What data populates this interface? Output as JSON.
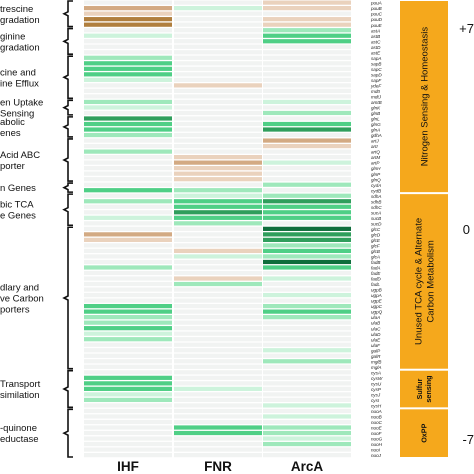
{
  "colors": {
    "dark_green": "#0f6e3c",
    "green": "#2f9e5c",
    "mid_green": "#4fcf86",
    "light_green": "#9ee8bb",
    "pale_green": "#cdf3dc",
    "empty": "#f1f3f2",
    "light_tan": "#ead2bd",
    "tan": "#d3aa83",
    "brown": "#b07f3e",
    "category_fill": "#f5a81c"
  },
  "scale_labels": [
    "+7",
    "0",
    "-7"
  ],
  "chart_data": {
    "type": "heatmap",
    "columns": [
      "IHF",
      "FNR",
      "ArcA"
    ],
    "groups": [
      {
        "label": [
          "trescine",
          "gradation"
        ],
        "rows": [
          0,
          4
        ]
      },
      {
        "label": [
          "ginine",
          "gradation"
        ],
        "rows": [
          5,
          9
        ]
      },
      {
        "label": [
          "cine and",
          "ine Efflux"
        ],
        "rows": [
          10,
          17
        ]
      },
      {
        "label": [
          "en Uptake",
          "Sensing"
        ],
        "rows": [
          18,
          20
        ]
      },
      {
        "label": [
          "abolic",
          "enes"
        ],
        "rows": [
          21,
          24
        ]
      },
      {
        "label": [
          "Acid ABC",
          "porter"
        ],
        "rows": [
          25,
          32
        ]
      },
      {
        "label": [
          "n Genes"
        ],
        "rows": [
          33,
          34
        ]
      },
      {
        "label": [
          "bic TCA",
          "e Genes"
        ],
        "rows": [
          35,
          40
        ]
      },
      {
        "label": [
          "dlary and",
          "ve Carbon",
          "porters"
        ],
        "rows": [
          41,
          66
        ]
      },
      {
        "label": [
          "Transport",
          "similation"
        ],
        "rows": [
          67,
          73
        ]
      },
      {
        "label": [
          "-quinone",
          "eductase"
        ],
        "rows": [
          74,
          82
        ]
      }
    ],
    "categories": [
      {
        "label": [
          "Nitrogen Sensing & Homeostasis"
        ],
        "rows": [
          0,
          34
        ]
      },
      {
        "label": [
          "Unused TCA cycle & Alternate",
          "Carbon Metabolism"
        ],
        "rows": [
          35,
          66
        ]
      },
      {
        "label": [
          "Sulfur",
          "sensing"
        ],
        "rows": [
          67,
          73
        ]
      },
      {
        "label": [
          "OxPP"
        ],
        "rows": [
          74,
          82
        ]
      }
    ],
    "genes": [
      "puuA",
      "puuB",
      "puuC",
      "puuD",
      "puuE",
      "astA",
      "astB",
      "astC",
      "astD",
      "astE",
      "sapA",
      "sapB",
      "sapC",
      "sapD",
      "sapF",
      "ydeF",
      "mdtI",
      "mdtJ",
      "amtB",
      "glnK",
      "glnB",
      "glnL",
      "glnG",
      "glnA",
      "gdhA",
      "artJ",
      "artI",
      "artQ",
      "artM",
      "artP",
      "glnH",
      "glnP",
      "glnQ",
      "cydA",
      "cydB",
      "sdhA",
      "sdhB",
      "sdhC",
      "sucA",
      "sucB",
      "sucD",
      "glcC",
      "glcD",
      "glcE",
      "glcF",
      "glcB",
      "glcA",
      "fadB",
      "fadA",
      "fadE",
      "fadD",
      "fadL",
      "ugpB",
      "ugpA",
      "ugpE",
      "ugpC",
      "ugpQ",
      "ulaA",
      "ulaB",
      "ulaC",
      "ulaD",
      "ulaE",
      "ulaF",
      "galP",
      "galR",
      "mglB",
      "mglA",
      "cysA",
      "cysW",
      "cysU",
      "cysP",
      "cysJ",
      "cysI",
      "cysH",
      "nuoA",
      "nuoB",
      "nuoC",
      "nuoE",
      "nuoF",
      "nuoG",
      "nuoH",
      "nuoI",
      "nuoJ"
    ],
    "values": [
      [
        0,
        0,
        -2
      ],
      [
        -3,
        1,
        -1
      ],
      [
        -2,
        0,
        0
      ],
      [
        -6,
        0,
        -1
      ],
      [
        -7,
        0,
        -1
      ],
      [
        0,
        0,
        2
      ],
      [
        1,
        0,
        4
      ],
      [
        0,
        0,
        3
      ],
      [
        0,
        0,
        0
      ],
      [
        0,
        0,
        0
      ],
      [
        2,
        0,
        0
      ],
      [
        3,
        0,
        0
      ],
      [
        4,
        0,
        0
      ],
      [
        3,
        0,
        0
      ],
      [
        1,
        0,
        0
      ],
      [
        0,
        -2,
        0
      ],
      [
        0,
        0,
        0
      ],
      [
        0,
        0,
        0
      ],
      [
        2,
        0,
        1
      ],
      [
        1,
        0,
        0
      ],
      [
        0,
        0,
        2
      ],
      [
        5,
        0,
        0
      ],
      [
        3,
        0,
        4
      ],
      [
        3,
        0,
        5
      ],
      [
        2,
        0,
        0
      ],
      [
        0,
        0,
        -3
      ],
      [
        0,
        0,
        -2
      ],
      [
        2,
        0,
        0
      ],
      [
        0,
        -2,
        0
      ],
      [
        0,
        -3,
        1
      ],
      [
        0,
        -2,
        0
      ],
      [
        0,
        -2,
        0
      ],
      [
        0,
        -1,
        0
      ],
      [
        0,
        0,
        2
      ],
      [
        3,
        2,
        0
      ],
      [
        0,
        1,
        2
      ],
      [
        2,
        4,
        6
      ],
      [
        0,
        3,
        4
      ],
      [
        0,
        5,
        3
      ],
      [
        1,
        3,
        4
      ],
      [
        0,
        2,
        0
      ],
      [
        0,
        0,
        7
      ],
      [
        -3,
        0,
        6
      ],
      [
        -2,
        0,
        5
      ],
      [
        0,
        0,
        2
      ],
      [
        0,
        -1,
        3
      ],
      [
        0,
        1,
        2
      ],
      [
        0,
        0,
        7
      ],
      [
        2,
        0,
        4
      ],
      [
        0,
        0,
        0
      ],
      [
        0,
        -2,
        1
      ],
      [
        0,
        2,
        0
      ],
      [
        0,
        0,
        0
      ],
      [
        0,
        0,
        1
      ],
      [
        0,
        0,
        0
      ],
      [
        4,
        0,
        2
      ],
      [
        4,
        0,
        3
      ],
      [
        2,
        0,
        2
      ],
      [
        2,
        0,
        0
      ],
      [
        3,
        0,
        0
      ],
      [
        1,
        0,
        0
      ],
      [
        2,
        0,
        0
      ],
      [
        0,
        0,
        0
      ],
      [
        0,
        0,
        1
      ],
      [
        0,
        0,
        0
      ],
      [
        0,
        0,
        2
      ],
      [
        0,
        0,
        0
      ],
      [
        0,
        0,
        0
      ],
      [
        3,
        0,
        0
      ],
      [
        4,
        0,
        0
      ],
      [
        3,
        1,
        0
      ],
      [
        1,
        0,
        0
      ],
      [
        2,
        0,
        0
      ],
      [
        0,
        0,
        1
      ],
      [
        0,
        0,
        0
      ],
      [
        0,
        0,
        1
      ],
      [
        0,
        0,
        0
      ],
      [
        0,
        3,
        2
      ],
      [
        0,
        3,
        2
      ],
      [
        0,
        0,
        1
      ],
      [
        0,
        0,
        2
      ],
      [
        0,
        0,
        0
      ],
      [
        0,
        0,
        0
      ]
    ]
  }
}
